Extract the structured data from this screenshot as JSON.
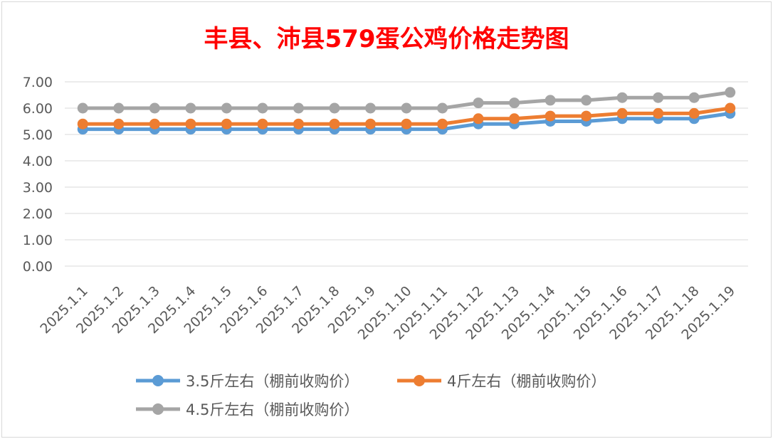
{
  "chart_data": {
    "type": "line",
    "title": "丰县、沛县579蛋公鸡价格走势图",
    "title_color": "#ff0000",
    "categories": [
      "2025.1.1",
      "2025.1.2",
      "2025.1.3",
      "2025.1.4",
      "2025.1.5",
      "2025.1.6",
      "2025.1.7",
      "2025.1.8",
      "2025.1.9",
      "2025.1.10",
      "2025.1.11",
      "2025.1.12",
      "2025.1.13",
      "2025.1.14",
      "2025.1.15",
      "2025.1.16",
      "2025.1.17",
      "2025.1.18",
      "2025.1.19"
    ],
    "series": [
      {
        "name": "3.5斤左右（棚前收购价）",
        "color": "#5b9bd5",
        "values": [
          5.2,
          5.2,
          5.2,
          5.2,
          5.2,
          5.2,
          5.2,
          5.2,
          5.2,
          5.2,
          5.2,
          5.4,
          5.4,
          5.5,
          5.5,
          5.6,
          5.6,
          5.6,
          5.8
        ]
      },
      {
        "name": "4斤左右（棚前收购价）",
        "color": "#ed7d31",
        "values": [
          5.4,
          5.4,
          5.4,
          5.4,
          5.4,
          5.4,
          5.4,
          5.4,
          5.4,
          5.4,
          5.4,
          5.6,
          5.6,
          5.7,
          5.7,
          5.8,
          5.8,
          5.8,
          6.0
        ]
      },
      {
        "name": "4.5斤左右（棚前收购价）",
        "color": "#a5a5a5",
        "values": [
          6.0,
          6.0,
          6.0,
          6.0,
          6.0,
          6.0,
          6.0,
          6.0,
          6.0,
          6.0,
          6.0,
          6.2,
          6.2,
          6.3,
          6.3,
          6.4,
          6.4,
          6.4,
          6.6
        ]
      }
    ],
    "ylim": [
      0,
      7
    ],
    "yticks": [
      "0.00",
      "1.00",
      "2.00",
      "3.00",
      "4.00",
      "5.00",
      "6.00",
      "7.00"
    ],
    "grid": true,
    "legend_position": "bottom"
  }
}
